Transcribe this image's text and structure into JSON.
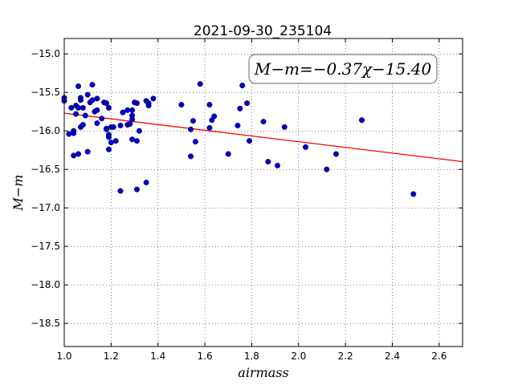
{
  "chart_data": {
    "type": "scatter",
    "title": "2021-09-30_235104",
    "xlabel": "airmass",
    "ylabel": "M−m",
    "xlim": [
      1.0,
      2.7
    ],
    "ylim": [
      -18.8,
      -14.8
    ],
    "y_inverted": true,
    "xticks": [
      "1.0",
      "1.2",
      "1.4",
      "1.6",
      "1.8",
      "2.0",
      "2.2",
      "2.4",
      "2.6"
    ],
    "yticks": [
      "−15.0",
      "−15.5",
      "−16.0",
      "−16.5",
      "−17.0",
      "−17.5",
      "−18.0",
      "−18.5"
    ],
    "grid": true,
    "annotation": "M−m=−0.37χ−15.40",
    "marker_color": "#0000cc",
    "fit_color": "#ff0000",
    "fit": {
      "slope": -0.37,
      "intercept": -15.4
    },
    "points": [
      {
        "x": 1.0,
        "y": -15.57
      },
      {
        "x": 1.0,
        "y": -15.61
      },
      {
        "x": 1.02,
        "y": -16.04
      },
      {
        "x": 1.03,
        "y": -15.7
      },
      {
        "x": 1.04,
        "y": -16.0
      },
      {
        "x": 1.04,
        "y": -16.03
      },
      {
        "x": 1.04,
        "y": -16.32
      },
      {
        "x": 1.05,
        "y": -15.78
      },
      {
        "x": 1.05,
        "y": -15.67
      },
      {
        "x": 1.06,
        "y": -15.42
      },
      {
        "x": 1.06,
        "y": -15.7
      },
      {
        "x": 1.06,
        "y": -16.3
      },
      {
        "x": 1.07,
        "y": -15.57
      },
      {
        "x": 1.07,
        "y": -15.95
      },
      {
        "x": 1.07,
        "y": -15.6
      },
      {
        "x": 1.08,
        "y": -15.7
      },
      {
        "x": 1.08,
        "y": -15.92
      },
      {
        "x": 1.09,
        "y": -15.8
      },
      {
        "x": 1.1,
        "y": -15.53
      },
      {
        "x": 1.1,
        "y": -16.27
      },
      {
        "x": 1.11,
        "y": -15.63
      },
      {
        "x": 1.12,
        "y": -15.6
      },
      {
        "x": 1.12,
        "y": -15.4
      },
      {
        "x": 1.13,
        "y": -15.75
      },
      {
        "x": 1.14,
        "y": -15.9
      },
      {
        "x": 1.14,
        "y": -15.58
      },
      {
        "x": 1.14,
        "y": -15.73
      },
      {
        "x": 1.16,
        "y": -15.84
      },
      {
        "x": 1.17,
        "y": -15.63
      },
      {
        "x": 1.18,
        "y": -15.64
      },
      {
        "x": 1.18,
        "y": -15.98
      },
      {
        "x": 1.18,
        "y": -15.97
      },
      {
        "x": 1.19,
        "y": -16.08
      },
      {
        "x": 1.19,
        "y": -16.05
      },
      {
        "x": 1.19,
        "y": -15.7
      },
      {
        "x": 1.19,
        "y": -16.24
      },
      {
        "x": 1.2,
        "y": -15.95
      },
      {
        "x": 1.2,
        "y": -16.15
      },
      {
        "x": 1.21,
        "y": -15.95
      },
      {
        "x": 1.22,
        "y": -16.13
      },
      {
        "x": 1.24,
        "y": -15.93
      },
      {
        "x": 1.24,
        "y": -16.78
      },
      {
        "x": 1.25,
        "y": -15.76
      },
      {
        "x": 1.27,
        "y": -15.73
      },
      {
        "x": 1.27,
        "y": -15.92
      },
      {
        "x": 1.28,
        "y": -15.91
      },
      {
        "x": 1.29,
        "y": -15.85
      },
      {
        "x": 1.29,
        "y": -15.8
      },
      {
        "x": 1.29,
        "y": -15.73
      },
      {
        "x": 1.29,
        "y": -16.11
      },
      {
        "x": 1.3,
        "y": -15.63
      },
      {
        "x": 1.31,
        "y": -16.13
      },
      {
        "x": 1.31,
        "y": -15.64
      },
      {
        "x": 1.31,
        "y": -16.76
      },
      {
        "x": 1.32,
        "y": -16.0
      },
      {
        "x": 1.35,
        "y": -16.67
      },
      {
        "x": 1.35,
        "y": -15.61
      },
      {
        "x": 1.36,
        "y": -15.64
      },
      {
        "x": 1.36,
        "y": -15.67
      },
      {
        "x": 1.38,
        "y": -15.58
      },
      {
        "x": 1.5,
        "y": -15.66
      },
      {
        "x": 1.54,
        "y": -15.98
      },
      {
        "x": 1.54,
        "y": -16.33
      },
      {
        "x": 1.55,
        "y": -15.87
      },
      {
        "x": 1.56,
        "y": -16.14
      },
      {
        "x": 1.58,
        "y": -15.39
      },
      {
        "x": 1.62,
        "y": -15.96
      },
      {
        "x": 1.62,
        "y": -15.66
      },
      {
        "x": 1.63,
        "y": -15.86
      },
      {
        "x": 1.64,
        "y": -15.81
      },
      {
        "x": 1.7,
        "y": -16.3
      },
      {
        "x": 1.74,
        "y": -15.93
      },
      {
        "x": 1.75,
        "y": -15.71
      },
      {
        "x": 1.76,
        "y": -15.41
      },
      {
        "x": 1.78,
        "y": -15.64
      },
      {
        "x": 1.79,
        "y": -16.13
      },
      {
        "x": 1.85,
        "y": -15.88
      },
      {
        "x": 1.87,
        "y": -16.4
      },
      {
        "x": 1.91,
        "y": -16.45
      },
      {
        "x": 1.94,
        "y": -15.95
      },
      {
        "x": 2.03,
        "y": -16.21
      },
      {
        "x": 2.12,
        "y": -16.5
      },
      {
        "x": 2.16,
        "y": -16.3
      },
      {
        "x": 2.27,
        "y": -15.86
      },
      {
        "x": 2.49,
        "y": -16.82
      }
    ]
  }
}
